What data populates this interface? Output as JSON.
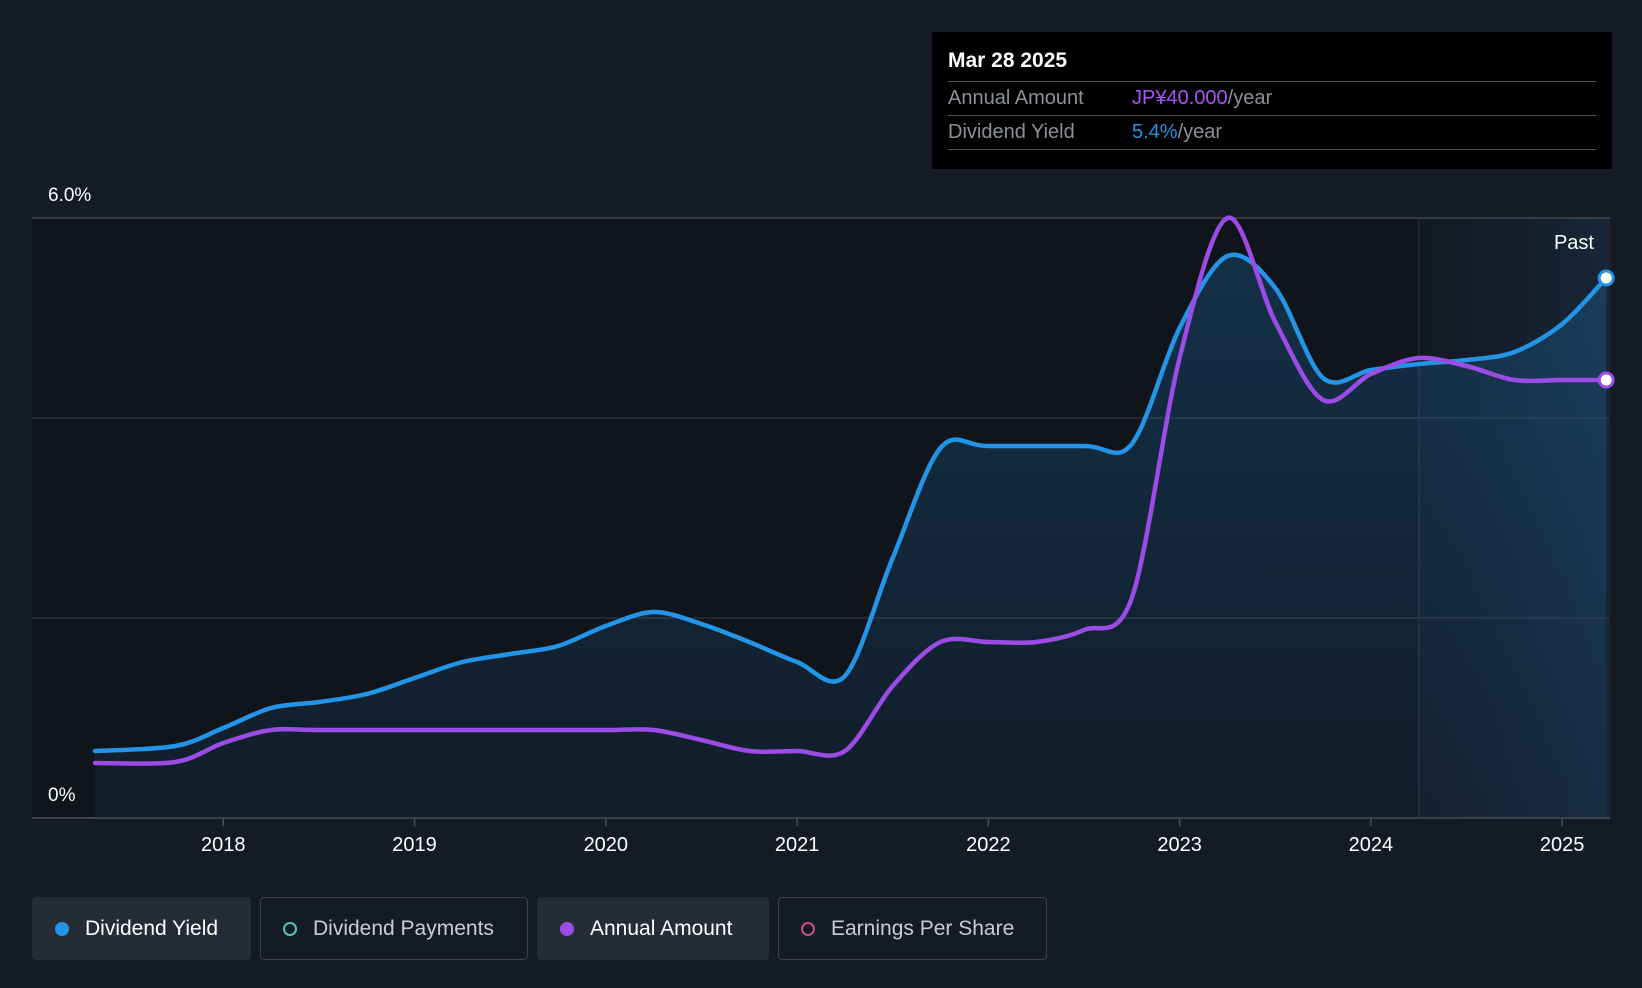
{
  "colors": {
    "background": "#151b24",
    "yield": "#2394e6",
    "annual": "#9c4ce6",
    "payments": "#4ec7b5",
    "eps": "#c94f86",
    "grid": "#3a3f47"
  },
  "tooltip": {
    "date": "Mar 28 2025",
    "rows": [
      {
        "label": "Annual Amount",
        "value": "JP¥40.000",
        "unit": "/year",
        "color": "#a855f7"
      },
      {
        "label": "Dividend Yield",
        "value": "5.4%",
        "unit": "/year",
        "color": "#2394e6"
      }
    ]
  },
  "chart_data": {
    "type": "line",
    "title": "",
    "xlabel": "",
    "ylabel": "",
    "ylim": [
      0,
      6.0
    ],
    "xlim": [
      2017.0,
      2025.25
    ],
    "x_ticks": [
      2018,
      2019,
      2020,
      2021,
      2022,
      2023,
      2024,
      2025
    ],
    "x_tick_labels": [
      "2018",
      "2019",
      "2020",
      "2021",
      "2022",
      "2023",
      "2024",
      "2025"
    ],
    "y_tick_labels": [
      "6.0%",
      "0%"
    ],
    "grid": true,
    "past_label": "Past",
    "past_start": 2024.25,
    "series": [
      {
        "name": "Dividend Yield",
        "color": "#2394e6",
        "filled": true,
        "points": [
          [
            2017.33,
            0.67
          ],
          [
            2017.75,
            0.72
          ],
          [
            2018.0,
            0.9
          ],
          [
            2018.25,
            1.1
          ],
          [
            2018.5,
            1.16
          ],
          [
            2018.75,
            1.24
          ],
          [
            2019.0,
            1.4
          ],
          [
            2019.25,
            1.56
          ],
          [
            2019.5,
            1.64
          ],
          [
            2019.75,
            1.72
          ],
          [
            2020.0,
            1.92
          ],
          [
            2020.25,
            2.06
          ],
          [
            2020.5,
            1.94
          ],
          [
            2020.75,
            1.76
          ],
          [
            2021.0,
            1.56
          ],
          [
            2021.25,
            1.42
          ],
          [
            2021.5,
            2.6
          ],
          [
            2021.75,
            3.7
          ],
          [
            2022.0,
            3.72
          ],
          [
            2022.5,
            3.72
          ],
          [
            2022.75,
            3.74
          ],
          [
            2023.0,
            4.9
          ],
          [
            2023.25,
            5.62
          ],
          [
            2023.5,
            5.3
          ],
          [
            2023.75,
            4.4
          ],
          [
            2024.0,
            4.48
          ],
          [
            2024.25,
            4.54
          ],
          [
            2024.5,
            4.58
          ],
          [
            2024.75,
            4.66
          ],
          [
            2025.0,
            4.94
          ],
          [
            2025.23,
            5.4
          ]
        ]
      },
      {
        "name": "Annual Amount",
        "color": "#9c4ce6",
        "filled": false,
        "points": [
          [
            2017.33,
            0.55
          ],
          [
            2017.75,
            0.56
          ],
          [
            2018.0,
            0.75
          ],
          [
            2018.25,
            0.88
          ],
          [
            2018.5,
            0.88
          ],
          [
            2019.0,
            0.88
          ],
          [
            2019.5,
            0.88
          ],
          [
            2020.0,
            0.88
          ],
          [
            2020.25,
            0.88
          ],
          [
            2020.5,
            0.78
          ],
          [
            2020.75,
            0.67
          ],
          [
            2021.0,
            0.67
          ],
          [
            2021.25,
            0.67
          ],
          [
            2021.5,
            1.32
          ],
          [
            2021.75,
            1.76
          ],
          [
            2022.0,
            1.76
          ],
          [
            2022.25,
            1.76
          ],
          [
            2022.5,
            1.88
          ],
          [
            2022.75,
            2.2
          ],
          [
            2023.0,
            4.6
          ],
          [
            2023.25,
            6.0
          ],
          [
            2023.5,
            4.96
          ],
          [
            2023.75,
            4.18
          ],
          [
            2024.0,
            4.44
          ],
          [
            2024.25,
            4.6
          ],
          [
            2024.5,
            4.52
          ],
          [
            2024.75,
            4.38
          ],
          [
            2025.0,
            4.38
          ],
          [
            2025.23,
            4.38
          ]
        ]
      }
    ]
  },
  "legend": [
    {
      "label": "Dividend Yield",
      "color": "#2394e6",
      "active": true
    },
    {
      "label": "Dividend Payments",
      "color": "#4ec7b5",
      "active": false
    },
    {
      "label": "Annual Amount",
      "color": "#9c4ce6",
      "active": true
    },
    {
      "label": "Earnings Per Share",
      "color": "#c94f86",
      "active": false
    }
  ]
}
